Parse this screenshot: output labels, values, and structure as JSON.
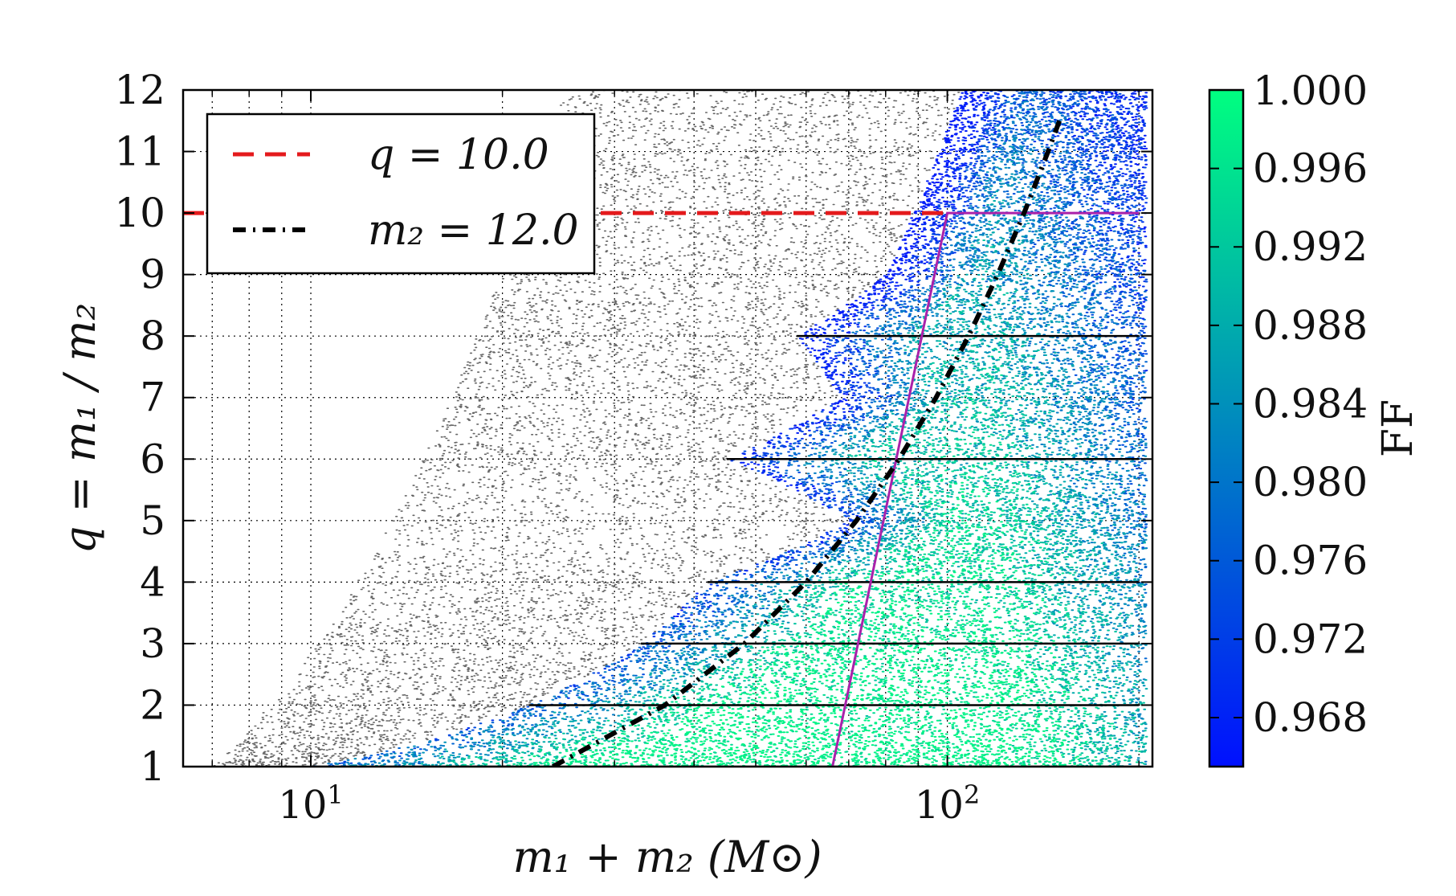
{
  "chart_data": {
    "type": "scatter",
    "x_scale": "log",
    "xlim": [
      6.3,
      210
    ],
    "ylim": [
      1,
      12
    ],
    "xlabel": "m₁ + m₂ (M⊙)",
    "ylabel": "q = m₁ / m₂",
    "x_ticks": [
      {
        "value": 10,
        "base": "10",
        "exp": "1"
      },
      {
        "value": 100,
        "base": "10",
        "exp": "2"
      }
    ],
    "y_ticks": [
      {
        "value": 1,
        "label": "1"
      },
      {
        "value": 2,
        "label": "2"
      },
      {
        "value": 3,
        "label": "3"
      },
      {
        "value": 4,
        "label": "4"
      },
      {
        "value": 5,
        "label": "5"
      },
      {
        "value": 6,
        "label": "6"
      },
      {
        "value": 7,
        "label": "7"
      },
      {
        "value": 8,
        "label": "8"
      },
      {
        "value": 9,
        "label": "9"
      },
      {
        "value": 10,
        "label": "10"
      },
      {
        "value": 11,
        "label": "11"
      },
      {
        "value": 12,
        "label": "12"
      }
    ],
    "grid": true,
    "colorbar": {
      "label": "FF",
      "range": [
        0.9655,
        1.0
      ],
      "ticks": [
        "1.000",
        "0.996",
        "0.992",
        "0.988",
        "0.984",
        "0.980",
        "0.976",
        "0.972",
        "0.968"
      ],
      "colors": [
        "#0010ff",
        "#00ff80"
      ]
    },
    "legend": {
      "position": "top-left",
      "entries": [
        {
          "name": "q_line",
          "label": "q = 10.0",
          "color": "#e41a1c",
          "style": "dashed"
        },
        {
          "name": "m2_line",
          "label": "m₂ = 12.0",
          "color": "#000000",
          "style": "dashdot"
        }
      ]
    },
    "series": [
      {
        "name": "q = 10.0",
        "color": "#e41a1c",
        "points": [
          [
            6.3,
            10
          ],
          [
            100,
            10
          ]
        ]
      },
      {
        "name": "m₂ = 12.0",
        "color": "#000000",
        "points": [
          [
            24,
            1
          ],
          [
            36,
            2
          ],
          [
            48,
            3
          ],
          [
            60,
            4
          ],
          [
            72,
            5
          ],
          [
            84,
            6
          ],
          [
            96,
            7
          ],
          [
            108,
            8
          ],
          [
            120,
            9
          ],
          [
            132,
            10
          ],
          [
            144,
            11
          ],
          [
            150,
            11.5
          ]
        ]
      },
      {
        "name": "region boundary",
        "color": "#aa22aa",
        "points": [
          [
            66,
            1
          ],
          [
            100,
            10
          ],
          [
            200,
            10
          ]
        ]
      },
      {
        "name": "template rows",
        "color": "#000000",
        "segments": [
          {
            "q": 1,
            "x": [
              10,
              200
            ]
          },
          {
            "q": 2,
            "x": [
              22,
              200
            ]
          },
          {
            "q": 3,
            "x": [
              33,
              200
            ]
          },
          {
            "q": 4,
            "x": [
              42,
              200
            ]
          },
          {
            "q": 6,
            "x": [
              45,
              200
            ]
          },
          {
            "q": 8,
            "x": [
              58,
              200
            ]
          }
        ]
      }
    ],
    "point_clouds": [
      {
        "name": "unmatched injections",
        "color": "#555555",
        "count": 7500
      },
      {
        "name": "fitting factor injections",
        "colored_by": "FF",
        "count": 20000
      }
    ]
  }
}
